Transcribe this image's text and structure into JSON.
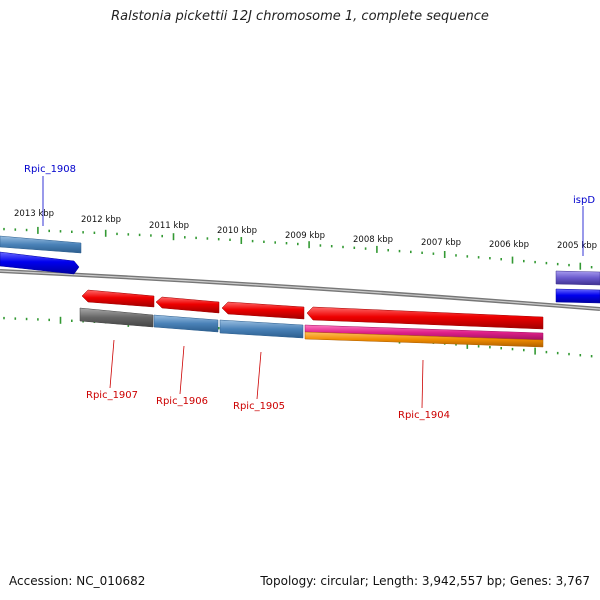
{
  "title": "Ralstonia pickettii 12J chromosome 1, complete sequence",
  "footer": {
    "accession": "Accession: NC_010682",
    "summary": "Topology: circular; Length: 3,942,557 bp; Genes: 3,767"
  },
  "scale_labels": [
    "2013 kbp",
    "2012 kbp",
    "2011 kbp",
    "2010 kbp",
    "2009 kbp",
    "2008 kbp",
    "2007 kbp",
    "2006 kbp",
    "2005 kbp"
  ],
  "genes": [
    {
      "name": "Rpic_1908",
      "color": "#0000cc"
    },
    {
      "name": "ispD",
      "color": "#0000cc"
    },
    {
      "name": "Rpic_1907",
      "color": "#cc0000"
    },
    {
      "name": "Rpic_1906",
      "color": "#cc0000"
    },
    {
      "name": "Rpic_1905",
      "color": "#cc0000"
    },
    {
      "name": "Rpic_1904",
      "color": "#cc0000"
    }
  ],
  "colors": {
    "forward_cds": "#0000ee",
    "reverse_cds": "#ee0000",
    "forward_feature": "#4a82b8",
    "reverse_feature_grey": "#666666",
    "reverse_feature_blue": "#4a82b8",
    "pink_feature": "#e0208a",
    "orange_feature": "#f08c00",
    "purple_feature": "#6a5acd",
    "backbone": "#888888",
    "ticks": "#339933"
  }
}
